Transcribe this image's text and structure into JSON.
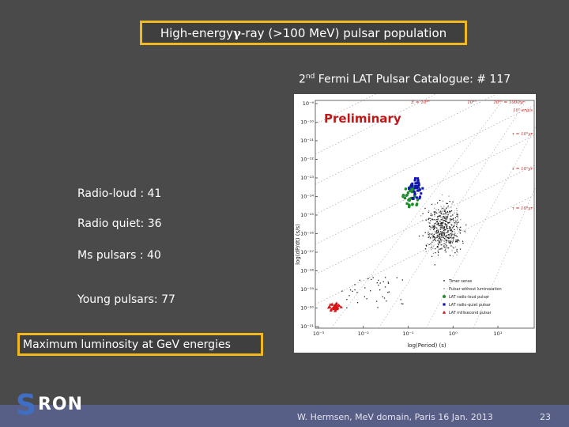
{
  "slide": {
    "title_prefix": "High-energy ",
    "title_gamma": "γ",
    "title_suffix": "-ray (>100 MeV)  pulsar population",
    "catalogue_prefix": "2",
    "catalogue_sup": "nd",
    "catalogue_suffix": " Fermi LAT Pulsar Catalogue: # 117",
    "stats": [
      "Radio-loud : 41",
      "Radio quiet: 36",
      "Ms pulsars : 40",
      "Young pulsars: 77"
    ],
    "max_luminosity": "Maximum luminosity at GeV energies",
    "footer": "W. Hermsen, MeV domain, Paris 16 Jan. 2013",
    "page_number": "23",
    "logo_s": "S",
    "logo_ron": "RON"
  },
  "plot": {
    "watermark": "Preliminary",
    "ylabel": "log(dP/dt) (s/s)",
    "xlabel": "log(Period) (s)",
    "yticks": [
      "10⁻⁹",
      "10⁻¹⁰",
      "10⁻¹¹",
      "10⁻¹²",
      "10⁻¹³",
      "10⁻¹⁴",
      "10⁻¹⁵",
      "10⁻¹⁶",
      "10⁻¹⁷",
      "10⁻¹⁸",
      "10⁻¹⁹",
      "10⁻²⁰",
      "10⁻²¹"
    ],
    "xticks": [
      "10⁻³",
      "10⁻²",
      "10⁻¹",
      "10⁰",
      "10¹"
    ],
    "top_labels": [
      "Ė = 10³⁶",
      "10³⁵",
      "10³³ = 1000yr"
    ],
    "right_labels": [
      "10⁷ erg/s",
      "τ = 10⁵yr",
      "τ = 10⁷yr",
      "τ = 10⁹yr"
    ],
    "legend": [
      "Timer sense",
      "Pulsar without luminosation",
      "LAT radio-loud pulsar",
      "LAT radio-quiet pulsar",
      "LAT millisecond pulsar"
    ],
    "colors": {
      "rl": "#1f8f2a",
      "rq": "#1414b4",
      "msp": "#d81414",
      "other": "#222222",
      "dim": "#9a9a9a"
    }
  }
}
